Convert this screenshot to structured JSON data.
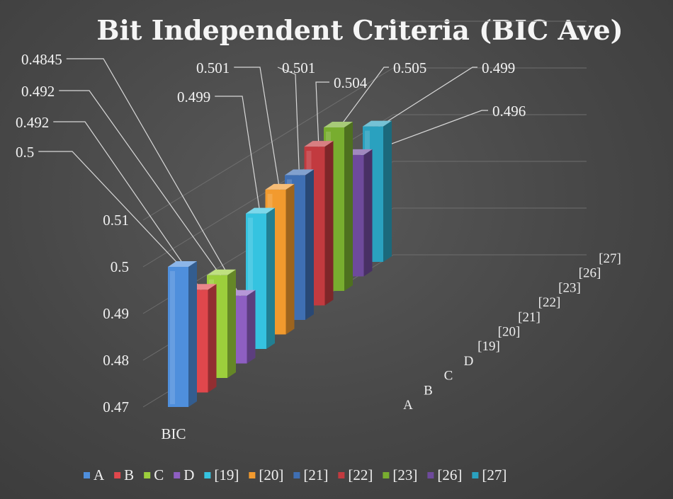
{
  "chart_data": {
    "type": "bar",
    "title": "Bit Independent Criteria (BIC Ave)",
    "categories": [
      "BIC"
    ],
    "series": [
      {
        "name": "A",
        "values": [
          0.5
        ],
        "color": "#4f8fdc"
      },
      {
        "name": "B",
        "values": [
          0.492
        ],
        "color": "#e0474c"
      },
      {
        "name": "C",
        "values": [
          0.492
        ],
        "color": "#9ccf3c"
      },
      {
        "name": "D",
        "values": [
          0.4845
        ],
        "color": "#8e5fc2"
      },
      {
        "name": "[19]",
        "values": [
          0.499
        ],
        "color": "#35c3e0"
      },
      {
        "name": "[20]",
        "values": [
          0.501
        ],
        "color": "#f29a2e"
      },
      {
        "name": "[21]",
        "values": [
          0.501
        ],
        "color": "#3f6fb3"
      },
      {
        "name": "[22]",
        "values": [
          0.504
        ],
        "color": "#c23a3f"
      },
      {
        "name": "[23]",
        "values": [
          0.505
        ],
        "color": "#78ad2f"
      },
      {
        "name": "[26]",
        "values": [
          0.496
        ],
        "color": "#6e4a9c"
      },
      {
        "name": "[27]",
        "values": [
          0.499
        ],
        "color": "#2aa1bf"
      }
    ],
    "data_labels": [
      "0.5",
      "0.492",
      "0.492",
      "0.4845",
      "0.499",
      "0.501",
      "0.501",
      "0.504",
      "0.505",
      "0.496",
      "0.499"
    ],
    "y_ticks": [
      "0.47",
      "0.48",
      "0.49",
      "0.5",
      "0.51"
    ],
    "ylim": [
      0.47,
      0.52
    ],
    "grid": true,
    "legend_position": "bottom",
    "three_d": true
  }
}
